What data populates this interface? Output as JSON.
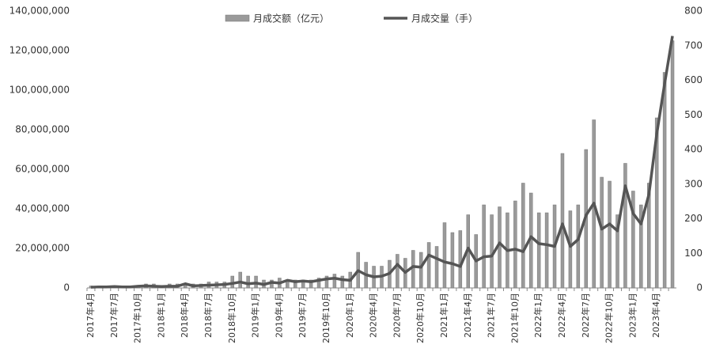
{
  "chart_data": {
    "type": "bar_line",
    "categories": [
      "2017年4月",
      null,
      null,
      "2017年7月",
      null,
      null,
      "2017年10月",
      null,
      null,
      "2018年1月",
      null,
      null,
      "2018年4月",
      null,
      null,
      "2018年7月",
      null,
      null,
      "2018年10月",
      null,
      null,
      "2019年1月",
      null,
      null,
      "2019年4月",
      null,
      null,
      "2019年7月",
      null,
      null,
      "2019年10月",
      null,
      null,
      "2020年1月",
      null,
      null,
      "2020年4月",
      null,
      null,
      "2020年7月",
      null,
      null,
      "2020年10月",
      null,
      null,
      "2021年1月",
      null,
      null,
      "2021年4月",
      null,
      null,
      "2021年7月",
      null,
      null,
      "2021年10月",
      null,
      null,
      "2022年1月",
      null,
      null,
      "2022年4月",
      null,
      null,
      "2022年7月",
      null,
      null,
      "2022年10月",
      null,
      null,
      "2023年1月",
      null,
      null,
      "2023年4月",
      null,
      null
    ],
    "series": [
      {
        "name": "月成交额（亿元）",
        "color": "#9a9a9a",
        "type": "bar",
        "axis": "y",
        "values": [
          1000000,
          1000000,
          1000000,
          1000000,
          1000000,
          1000000,
          1000000,
          2000000,
          2000000,
          1000000,
          2000000,
          2000000,
          2000000,
          2000000,
          2000000,
          3000000,
          3000000,
          3000000,
          6000000,
          8000000,
          6000000,
          6000000,
          4000000,
          4000000,
          5000000,
          4000000,
          4000000,
          4000000,
          4000000,
          5000000,
          6000000,
          7000000,
          6000000,
          8000000,
          18000000,
          13000000,
          11000000,
          11000000,
          14000000,
          17000000,
          15000000,
          19000000,
          18000000,
          23000000,
          21000000,
          33000000,
          28000000,
          29000000,
          37000000,
          27000000,
          42000000,
          37000000,
          41000000,
          38000000,
          44000000,
          53000000,
          48000000,
          38000000,
          38000000,
          42000000,
          68000000,
          39000000,
          42000000,
          70000000,
          85000000,
          56000000,
          54000000,
          37000000,
          63000000,
          49000000,
          42000000,
          53000000,
          86000000,
          109000000,
          125000000
        ]
      },
      {
        "name": "月成交量（手）",
        "color": "#555555",
        "type": "line",
        "axis": "y2",
        "values": [
          2,
          3,
          3,
          4,
          3,
          3,
          5,
          6,
          5,
          4,
          5,
          5,
          12,
          6,
          7,
          8,
          9,
          10,
          13,
          17,
          12,
          14,
          10,
          16,
          14,
          22,
          18,
          20,
          18,
          22,
          26,
          28,
          24,
          22,
          50,
          38,
          32,
          34,
          42,
          68,
          45,
          62,
          60,
          95,
          85,
          75,
          70,
          62,
          115,
          78,
          90,
          92,
          130,
          108,
          112,
          105,
          148,
          128,
          125,
          120,
          185,
          120,
          140,
          210,
          245,
          170,
          185,
          165,
          295,
          215,
          185,
          270,
          445,
          590,
          728
        ]
      }
    ],
    "ylim": [
      0,
      140000000
    ],
    "yticks": [
      0,
      {
        "value": 20000000,
        "label": "20,000,000"
      },
      {
        "value": 40000000,
        "label": "40,000,000"
      },
      {
        "value": 60000000,
        "label": "60,000,000"
      },
      {
        "value": 80000000,
        "label": "80,000,000"
      },
      {
        "value": 100000000,
        "label": "100,000,000"
      },
      {
        "value": 120000000,
        "label": "120,000,000"
      },
      {
        "value": 140000000,
        "label": "140,000,000"
      }
    ],
    "y2lim": [
      0,
      800
    ],
    "y2ticks": [
      0,
      100,
      200,
      300,
      400,
      500,
      600,
      700,
      800
    ],
    "legend": "top"
  }
}
